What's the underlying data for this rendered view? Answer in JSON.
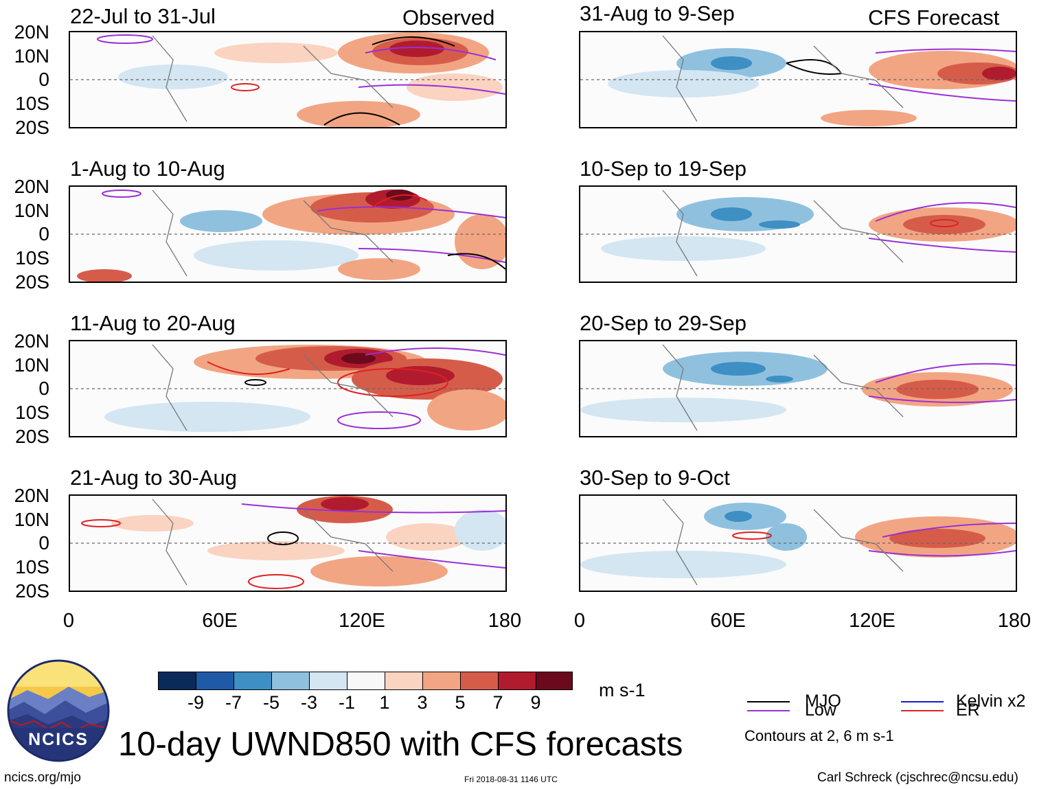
{
  "header": {
    "observed_label": "Observed",
    "forecast_label": "CFS Forecast"
  },
  "panels": {
    "left": [
      {
        "title": "22-Jul to 31-Jul"
      },
      {
        "title": "1-Aug to 10-Aug"
      },
      {
        "title": "11-Aug to 20-Aug"
      },
      {
        "title": "21-Aug to 30-Aug"
      }
    ],
    "right": [
      {
        "title": "31-Aug to 9-Sep"
      },
      {
        "title": "10-Sep to 19-Sep"
      },
      {
        "title": "20-Sep to 29-Sep"
      },
      {
        "title": "30-Sep to 9-Oct"
      }
    ]
  },
  "axes": {
    "lat_labels": [
      "20N",
      "10N",
      "0",
      "10S",
      "20S"
    ],
    "lon_labels": [
      "0",
      "60E",
      "120E",
      "180"
    ]
  },
  "colorbar": {
    "units": "m s-1",
    "tick_labels": [
      "-9",
      "-7",
      "-5",
      "-3",
      "-1",
      "1",
      "3",
      "5",
      "7",
      "9"
    ],
    "colors": [
      "#0a2a5c",
      "#1f5aa6",
      "#3d8fc4",
      "#8fc1df",
      "#d3e6f2",
      "#f8f8f8",
      "#fbd3c1",
      "#f2a583",
      "#d65c4a",
      "#b01c2e",
      "#6b0a1c"
    ]
  },
  "legend": {
    "mjo": "MJO",
    "kelvin": "Kelvin x2",
    "low": "Low",
    "er": "ER",
    "contours_note": "Contours at 2, 6 m s-1",
    "colors": {
      "mjo": "#000000",
      "kelvin": "#1a1acc",
      "low": "#9a2fd6",
      "er": "#e02020"
    }
  },
  "footer": {
    "title": "10-day UWND850 with CFS forecasts",
    "url": "ncics.org/mjo",
    "timestamp": "Fri 2018-08-31 1146 UTC",
    "author": "Carl Schreck (cjschrec@ncsu.edu)",
    "logo_text": "NCICS"
  }
}
